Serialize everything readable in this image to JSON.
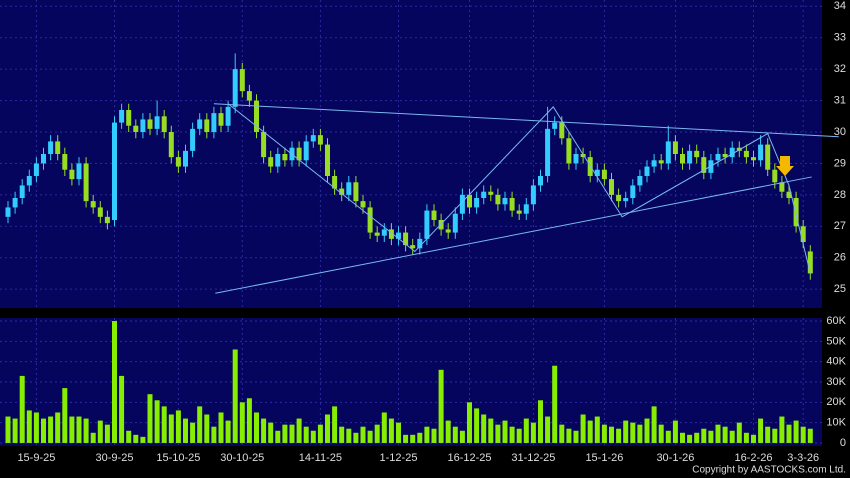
{
  "chart_data": [
    {
      "type": "candlestick",
      "open": [
        27.3,
        27.6,
        27.9,
        28.3,
        28.6,
        29.0,
        29.3,
        29.7,
        29.3,
        28.8,
        28.5,
        29.0,
        27.8,
        27.6,
        27.3,
        27.2,
        30.3,
        30.7,
        30.2,
        30.0,
        30.4,
        30.1,
        30.5,
        30.0,
        29.2,
        28.9,
        29.4,
        30.1,
        30.4,
        30.0,
        30.6,
        30.2,
        30.8,
        32.0,
        31.3,
        31.0,
        30.0,
        29.2,
        28.9,
        29.3,
        29.1,
        29.5,
        29.1,
        29.7,
        29.9,
        29.6,
        28.6,
        28.2,
        28.0,
        28.4,
        27.8,
        27.6,
        26.8,
        26.7,
        26.9,
        26.6,
        26.8,
        26.4,
        26.3,
        26.6,
        27.5,
        27.2,
        26.9,
        26.8,
        27.4,
        28.0,
        27.6,
        27.9,
        28.1,
        28.0,
        27.7,
        27.9,
        27.5,
        27.4,
        27.7,
        28.3,
        28.6,
        30.1,
        30.3,
        29.8,
        29.0,
        29.3,
        29.2,
        28.6,
        28.8,
        28.5,
        28.0,
        27.8,
        27.9,
        28.3,
        28.6,
        28.9,
        29.1,
        29.0,
        29.7,
        29.3,
        29.0,
        29.4,
        29.2,
        28.7,
        29.1,
        29.3,
        29.2,
        29.5,
        29.4,
        29.2,
        29.1,
        29.6,
        28.8,
        28.4,
        28.1,
        27.9,
        27.0,
        26.2
      ],
      "high": [
        27.8,
        28.1,
        28.5,
        28.8,
        29.2,
        29.5,
        29.9,
        29.9,
        29.5,
        29.0,
        29.2,
        29.2,
        28.0,
        27.8,
        27.5,
        30.5,
        30.9,
        30.9,
        30.4,
        30.6,
        30.6,
        31.0,
        30.7,
        30.2,
        29.4,
        29.6,
        30.3,
        30.6,
        30.6,
        30.8,
        30.8,
        31.0,
        32.5,
        32.2,
        31.5,
        31.2,
        30.2,
        29.4,
        29.5,
        29.5,
        29.7,
        29.7,
        29.9,
        30.1,
        30.1,
        29.8,
        28.8,
        28.4,
        28.6,
        28.6,
        28.0,
        27.8,
        27.0,
        27.1,
        27.1,
        27.0,
        27.0,
        26.6,
        26.8,
        27.7,
        27.7,
        27.4,
        27.1,
        27.6,
        28.2,
        28.2,
        28.1,
        28.3,
        28.3,
        28.2,
        28.1,
        28.1,
        27.7,
        27.9,
        28.5,
        28.8,
        30.8,
        30.5,
        30.5,
        30.0,
        29.5,
        29.5,
        29.4,
        29.0,
        29.0,
        28.7,
        28.2,
        28.1,
        28.5,
        28.8,
        29.1,
        29.3,
        29.3,
        30.2,
        29.9,
        29.5,
        29.6,
        29.6,
        29.4,
        29.3,
        29.5,
        29.5,
        29.7,
        29.7,
        29.6,
        29.4,
        29.9,
        29.8,
        29.0,
        28.6,
        28.3,
        28.1,
        27.2,
        26.4
      ],
      "low": [
        27.1,
        27.4,
        27.7,
        28.1,
        28.4,
        28.8,
        29.1,
        29.1,
        28.6,
        28.3,
        28.3,
        27.6,
        27.4,
        27.1,
        26.9,
        27.0,
        30.1,
        30.0,
        29.8,
        29.8,
        29.9,
        29.9,
        29.8,
        29.0,
        28.7,
        28.7,
        29.2,
        29.9,
        29.8,
        29.8,
        30.0,
        30.0,
        30.6,
        31.1,
        30.8,
        29.8,
        29.0,
        28.7,
        28.7,
        28.9,
        28.9,
        28.9,
        28.9,
        29.5,
        29.4,
        28.4,
        28.0,
        27.8,
        27.8,
        27.6,
        27.4,
        26.6,
        26.5,
        26.5,
        26.4,
        26.4,
        26.2,
        26.1,
        26.1,
        26.4,
        27.0,
        26.7,
        26.6,
        26.6,
        27.2,
        27.4,
        27.4,
        27.7,
        27.8,
        27.5,
        27.5,
        27.3,
        27.2,
        27.2,
        27.5,
        28.1,
        28.4,
        29.9,
        29.6,
        28.8,
        28.8,
        29.0,
        28.4,
        28.4,
        28.3,
        27.8,
        27.6,
        27.6,
        27.7,
        28.1,
        28.4,
        28.7,
        28.8,
        28.8,
        29.1,
        28.8,
        28.8,
        29.0,
        28.5,
        28.5,
        28.9,
        29.0,
        29.0,
        29.2,
        29.0,
        28.9,
        28.9,
        28.6,
        28.2,
        27.9,
        27.7,
        26.8,
        26.3,
        25.3
      ],
      "close": [
        27.6,
        27.9,
        28.3,
        28.6,
        29.0,
        29.3,
        29.7,
        29.3,
        28.8,
        28.5,
        29.0,
        27.8,
        27.6,
        27.3,
        27.1,
        30.3,
        30.7,
        30.2,
        30.0,
        30.4,
        30.1,
        30.5,
        30.0,
        29.2,
        28.9,
        29.4,
        30.1,
        30.4,
        30.0,
        30.6,
        30.2,
        30.8,
        32.0,
        31.3,
        31.0,
        30.0,
        29.2,
        28.9,
        29.3,
        29.1,
        29.5,
        29.1,
        29.7,
        29.9,
        29.6,
        28.6,
        28.2,
        28.0,
        28.4,
        27.8,
        27.6,
        26.8,
        26.7,
        26.9,
        26.6,
        26.8,
        26.4,
        26.3,
        26.6,
        27.5,
        27.2,
        26.9,
        26.8,
        27.4,
        28.0,
        27.6,
        27.9,
        28.1,
        28.0,
        27.7,
        27.9,
        27.5,
        27.4,
        27.7,
        28.3,
        28.6,
        30.1,
        30.3,
        29.8,
        29.0,
        29.3,
        29.2,
        28.6,
        28.8,
        28.5,
        28.0,
        27.8,
        27.9,
        28.3,
        28.6,
        28.9,
        29.1,
        29.0,
        29.7,
        29.3,
        29.0,
        29.4,
        29.2,
        28.7,
        29.1,
        29.3,
        29.2,
        29.5,
        29.4,
        29.2,
        29.1,
        29.6,
        28.8,
        28.4,
        28.1,
        27.9,
        27.0,
        26.5,
        25.5
      ],
      "up_color": "#33ccff",
      "down_color": "#99dd22",
      "ylim": [
        24.4,
        34.2
      ],
      "yticks": [
        25,
        26,
        27,
        28,
        29,
        30,
        31,
        32,
        33,
        34
      ],
      "grid": true,
      "trend_lines": [
        {
          "x": [
            29,
            117
          ],
          "y": [
            30.9,
            29.85
          ]
        },
        {
          "x": [
            29.2,
            113.2
          ],
          "y": [
            24.87,
            28.57
          ]
        },
        {
          "x": [
            31,
            57.3,
            76.8,
            86.5,
            107,
            110,
            113
          ],
          "y": [
            30.9,
            26.2,
            30.8,
            27.3,
            29.95,
            28.3,
            25.5
          ]
        }
      ],
      "trend_color": "#7ab8f0"
    },
    {
      "type": "bar",
      "categories": [
        null,
        null,
        null,
        null,
        "15-9-25",
        null,
        null,
        null,
        null,
        null,
        null,
        null,
        null,
        null,
        null,
        "30-9-25",
        null,
        null,
        null,
        null,
        null,
        null,
        null,
        null,
        "15-10-25",
        null,
        null,
        null,
        null,
        null,
        null,
        null,
        null,
        "30-10-25",
        null,
        null,
        null,
        null,
        null,
        null,
        null,
        null,
        null,
        null,
        "14-11-25",
        null,
        null,
        null,
        null,
        null,
        null,
        null,
        null,
        null,
        null,
        "1-12-25",
        null,
        null,
        null,
        null,
        null,
        null,
        null,
        null,
        null,
        "16-12-25",
        null,
        null,
        null,
        null,
        null,
        null,
        null,
        null,
        "31-12-25",
        null,
        null,
        null,
        null,
        null,
        null,
        null,
        null,
        null,
        "15-1-26",
        null,
        null,
        null,
        null,
        null,
        null,
        null,
        null,
        null,
        "30-1-26",
        null,
        null,
        null,
        null,
        null,
        null,
        null,
        null,
        null,
        null,
        "16-2-26",
        null,
        null,
        null,
        null,
        null,
        null,
        "3-3-26",
        null
      ],
      "values": [
        13000,
        12000,
        33000,
        16000,
        15000,
        12000,
        13000,
        15000,
        27000,
        13000,
        13000,
        12000,
        5000,
        11000,
        9000,
        60000,
        33000,
        6000,
        4000,
        3000,
        24000,
        21000,
        18000,
        14000,
        16000,
        12000,
        10000,
        18000,
        14000,
        8000,
        15000,
        11000,
        46000,
        20000,
        22000,
        15000,
        12000,
        10000,
        6000,
        9000,
        9000,
        12000,
        8000,
        6000,
        9000,
        14000,
        18000,
        8000,
        7000,
        5000,
        8000,
        6000,
        9000,
        15000,
        12000,
        10000,
        4000,
        4000,
        5000,
        8000,
        7000,
        36000,
        11000,
        8000,
        6000,
        20000,
        17000,
        14000,
        12000,
        9000,
        11000,
        8000,
        7000,
        12000,
        10000,
        21000,
        13000,
        38000,
        9000,
        7000,
        6000,
        14000,
        11000,
        13000,
        9000,
        8000,
        7000,
        11000,
        10000,
        9000,
        12000,
        18000,
        9000,
        6000,
        11000,
        5000,
        4000,
        5000,
        7000,
        6000,
        9000,
        8000,
        6000,
        10000,
        5000,
        4000,
        12000,
        8000,
        7000,
        13000,
        9000,
        11000,
        8000,
        7000
      ],
      "color": "#88ee00",
      "ylim": [
        -1500,
        61500
      ],
      "yticks": [
        {
          "value": 0,
          "label": "0"
        },
        {
          "value": 10000,
          "label": "10K"
        },
        {
          "value": 20000,
          "label": "20K"
        },
        {
          "value": 30000,
          "label": "30K"
        },
        {
          "value": 40000,
          "label": "40K"
        },
        {
          "value": 50000,
          "label": "50K"
        },
        {
          "value": 60000,
          "label": "60K"
        }
      ],
      "grid": true,
      "note": "Copyright by AASTOCKS.com Ltd."
    }
  ]
}
